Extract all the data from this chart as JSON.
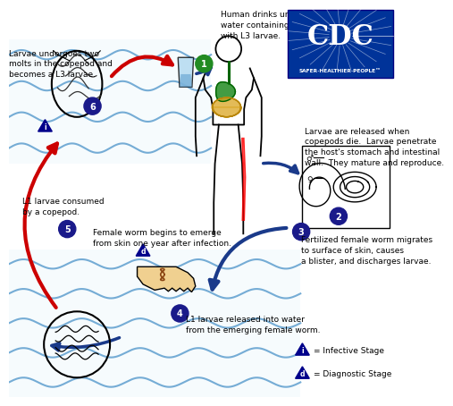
{
  "bg_color": "#ffffff",
  "water_color": "#87CEEB",
  "wave_color": "#5599CC",
  "arrow_blue": "#1a3a8a",
  "arrow_red": "#cc0000",
  "step_circle_green": "#228B22",
  "step_circle_blue": "#1a1a8a",
  "cdc_blue": "#003399",
  "legend_triangle_color": "#00008B",
  "text_step1": "Human drinks unfiltered\nwater containing copepods\nwith L3 larvae.",
  "text_step2": "Larvae are released when\ncopepods die.  Larvae penetrate\nthe host's stomach and intestinal\nwall.  They mature and reproduce.",
  "text_step3": "Fertilized female worm migrates\nto surface of skin, causes\na blister, and discharges larvae.",
  "text_step4": "L1 larvae released into water\nfrom the emerging female worm.",
  "text_step5": "L1 larvae consumed\nby a copepod.",
  "text_step6": "Larvae undergoes two\nmolts in the copepod and\nbecomes a L3 larvae.",
  "text_foot": "Female worm begins to emerge\nfrom skin one year after infection.",
  "text_legend1": "= Infective Stage",
  "text_legend2": "= Diagnostic Stage",
  "cdc_text": "CDC",
  "cdc_sub": "SAFER·HEALTHIER·PEOPLE™"
}
